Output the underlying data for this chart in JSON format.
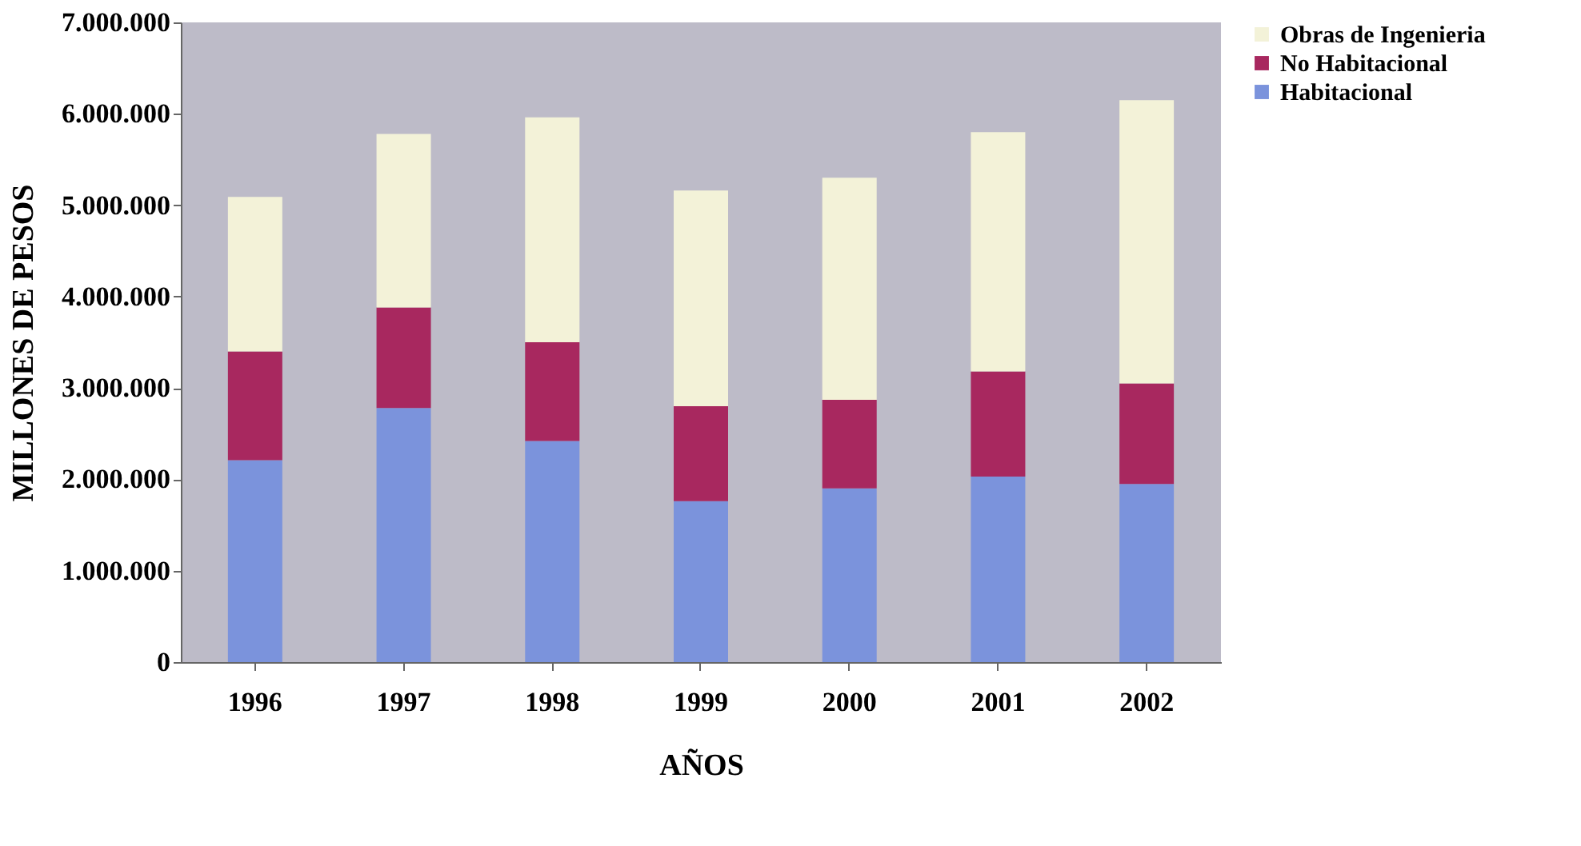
{
  "chart_data": {
    "type": "bar",
    "stacked": true,
    "xlabel": "AÑOS",
    "ylabel": "MILLONES DE PESOS",
    "categories": [
      "1996",
      "1997",
      "1998",
      "1999",
      "2000",
      "2001",
      "2002"
    ],
    "series": [
      {
        "name": "Habitacional",
        "color": "#7b93dc",
        "values": [
          2210000,
          2780000,
          2420000,
          1760000,
          1900000,
          2030000,
          1950000
        ]
      },
      {
        "name": "No Habitacional",
        "color": "#a8285f",
        "values": [
          1190000,
          1100000,
          1080000,
          1040000,
          970000,
          1150000,
          1100000
        ]
      },
      {
        "name": "Obras de Ingenieria",
        "color": "#f3f2d8",
        "values": [
          1690000,
          1900000,
          2460000,
          2360000,
          2430000,
          2620000,
          3100000
        ]
      }
    ],
    "ylim": [
      0,
      7000000
    ],
    "yticks": [
      0,
      {
        "value": 1000000,
        "label": "1.000.000"
      },
      {
        "value": 2000000,
        "label": "2.000.000"
      },
      {
        "value": 3000000,
        "label": "3.000.000"
      },
      {
        "value": 4000000,
        "label": "4.000.000"
      },
      {
        "value": 5000000,
        "label": "5.000.000"
      },
      {
        "value": 6000000,
        "label": "6.000.000"
      },
      {
        "value": 7000000,
        "label": "7.000.000"
      }
    ],
    "grid": false,
    "legend": "right"
  }
}
